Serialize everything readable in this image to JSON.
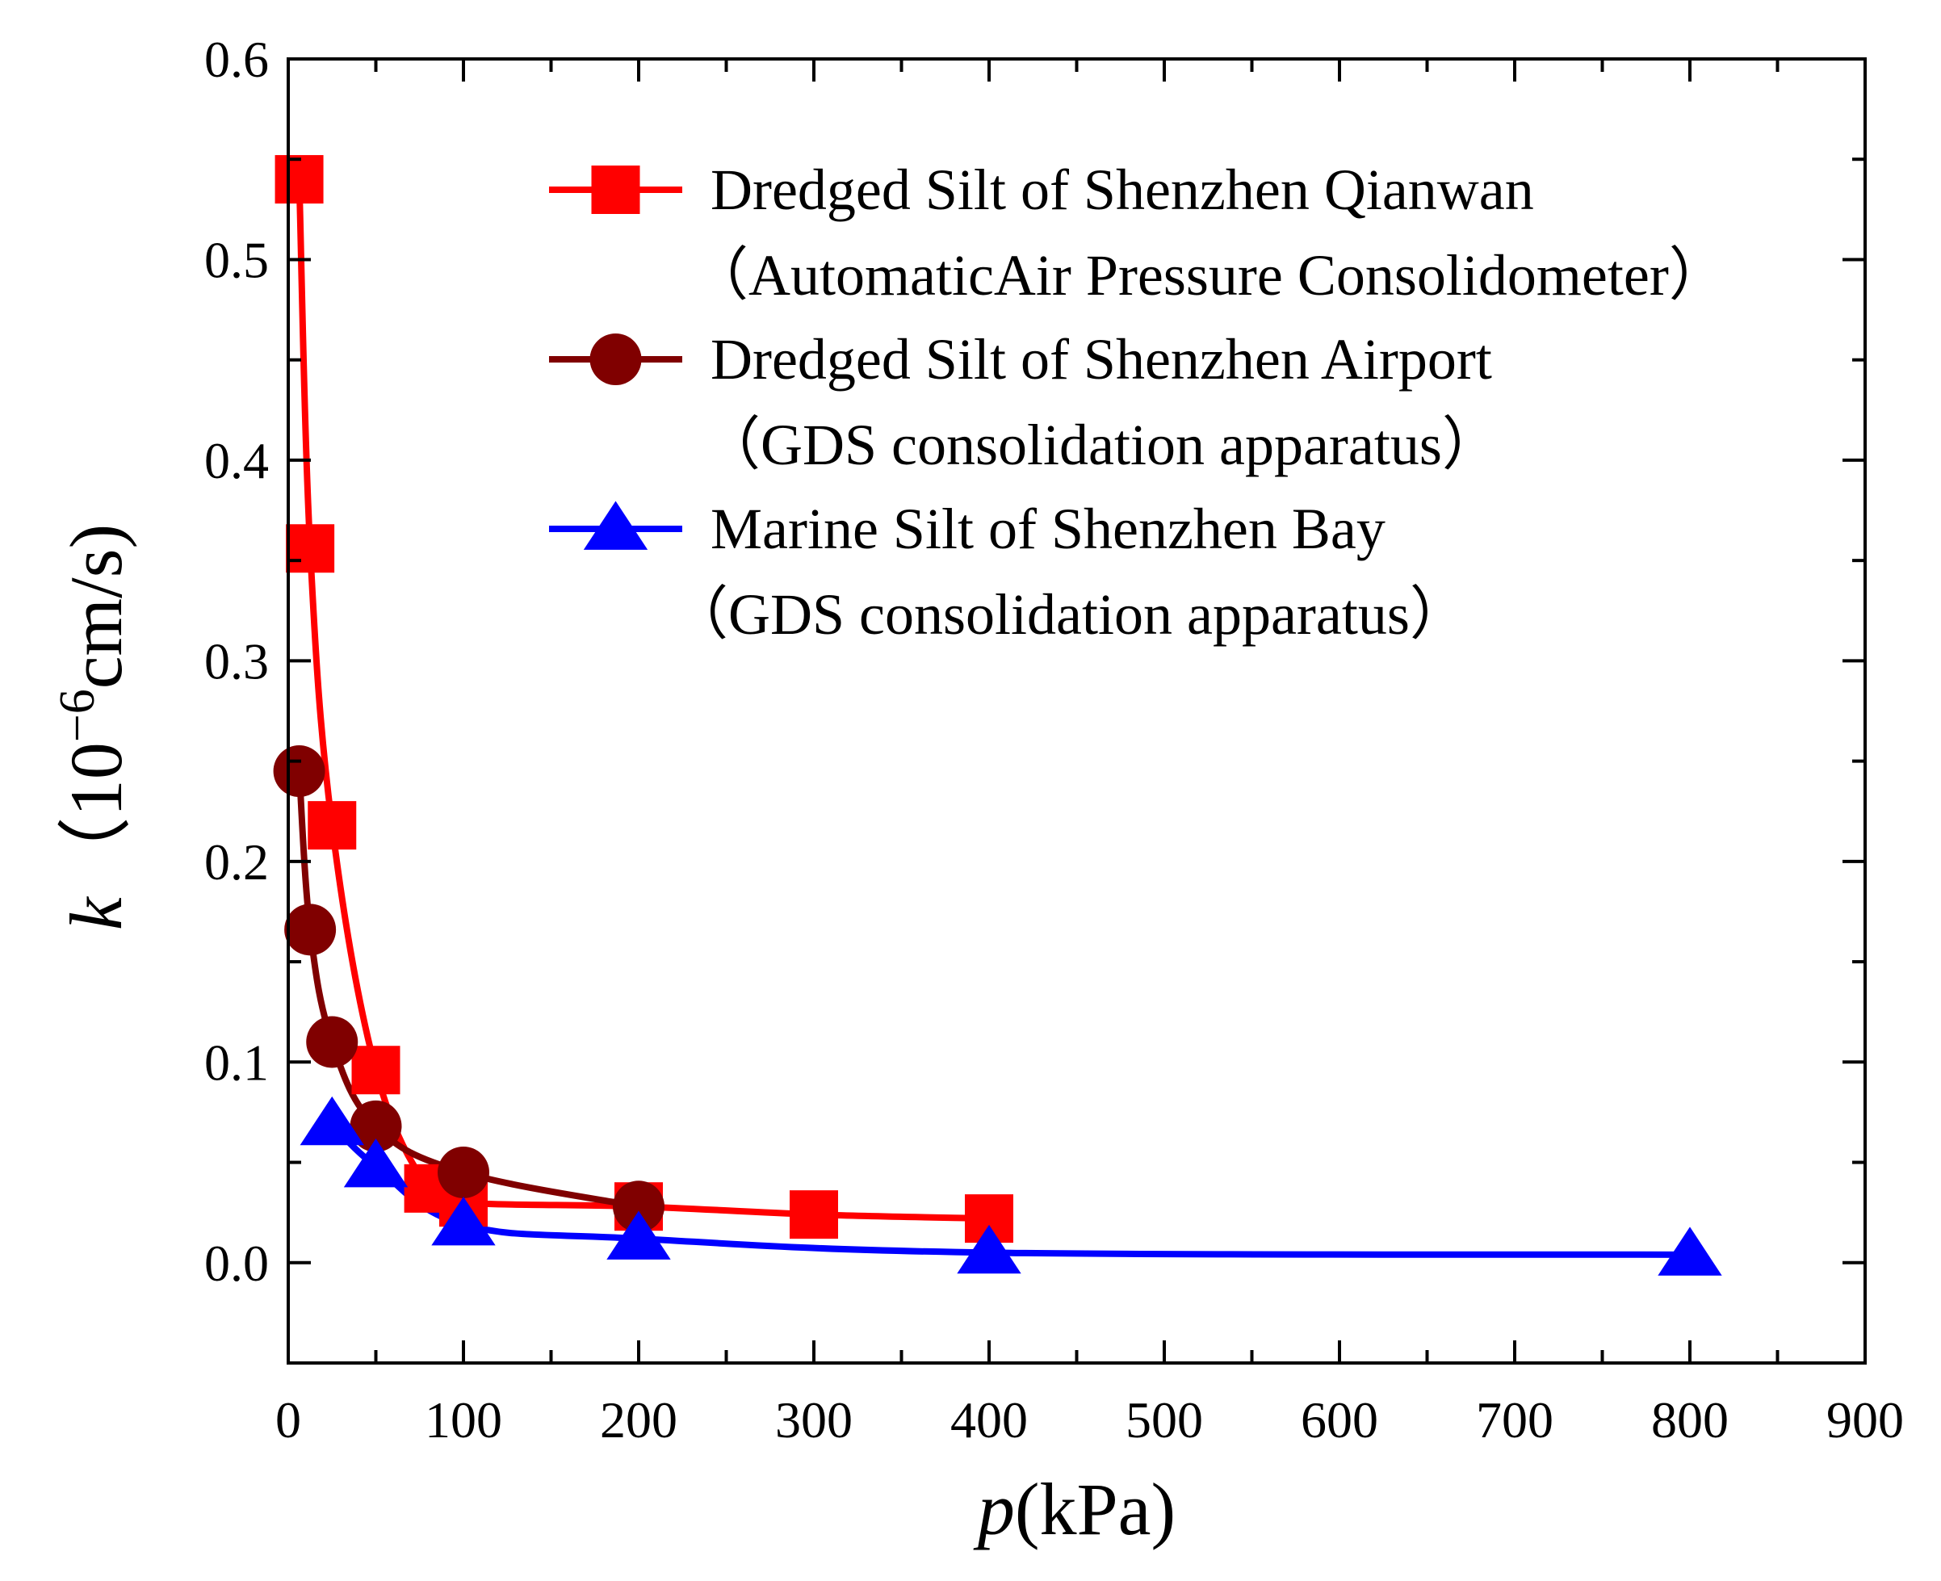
{
  "chart_data": {
    "type": "line",
    "xlabel_italic": "p",
    "xlabel_rest": "(kPa)",
    "ylabel_italic": "k",
    "ylabel_rest": "（10",
    "ylabel_exponent": "−6",
    "ylabel_unit": "cm/s)",
    "xlim": [
      0,
      900
    ],
    "ylim": [
      -0.05,
      0.6
    ],
    "x_ticks": [
      0,
      100,
      200,
      300,
      400,
      500,
      600,
      700,
      800,
      900
    ],
    "x_tick_labels": [
      "0",
      "100",
      "200",
      "300",
      "400",
      "500",
      "600",
      "700",
      "800",
      "900"
    ],
    "y_ticks": [
      0.0,
      0.1,
      0.2,
      0.3,
      0.4,
      0.5,
      0.6
    ],
    "y_tick_labels": [
      "0.0",
      "0.1",
      "0.2",
      "0.3",
      "0.4",
      "0.5",
      "0.6"
    ],
    "grid": false,
    "legend_position": "top-right",
    "series": [
      {
        "name": "Dredged Silt of Shenzhen Qianwan",
        "subtitle": "（AutomaticAir Pressure Consolidometer）",
        "color": "#ff0000",
        "marker": "square",
        "x": [
          6.25,
          12.5,
          25,
          50,
          80,
          100,
          200,
          300,
          400
        ],
        "y": [
          0.54,
          0.356,
          0.218,
          0.096,
          0.037,
          0.03,
          0.028,
          0.024,
          0.022
        ]
      },
      {
        "name": "Dredged Silt of Shenzhen Airport",
        "subtitle": "（GDS consolidation apparatus）",
        "color": "#800000",
        "marker": "circle",
        "x": [
          6.25,
          12.5,
          25,
          50,
          100,
          200
        ],
        "y": [
          0.245,
          0.166,
          0.11,
          0.068,
          0.045,
          0.028
        ]
      },
      {
        "name": "Marine Silt of  Shenzhen Bay",
        "subtitle": "（GDS consolidation apparatus）",
        "color": "#0000ff",
        "marker": "triangle",
        "x": [
          25,
          50,
          100,
          200,
          400,
          800
        ],
        "y": [
          0.069,
          0.048,
          0.019,
          0.012,
          0.005,
          0.004
        ]
      }
    ]
  }
}
